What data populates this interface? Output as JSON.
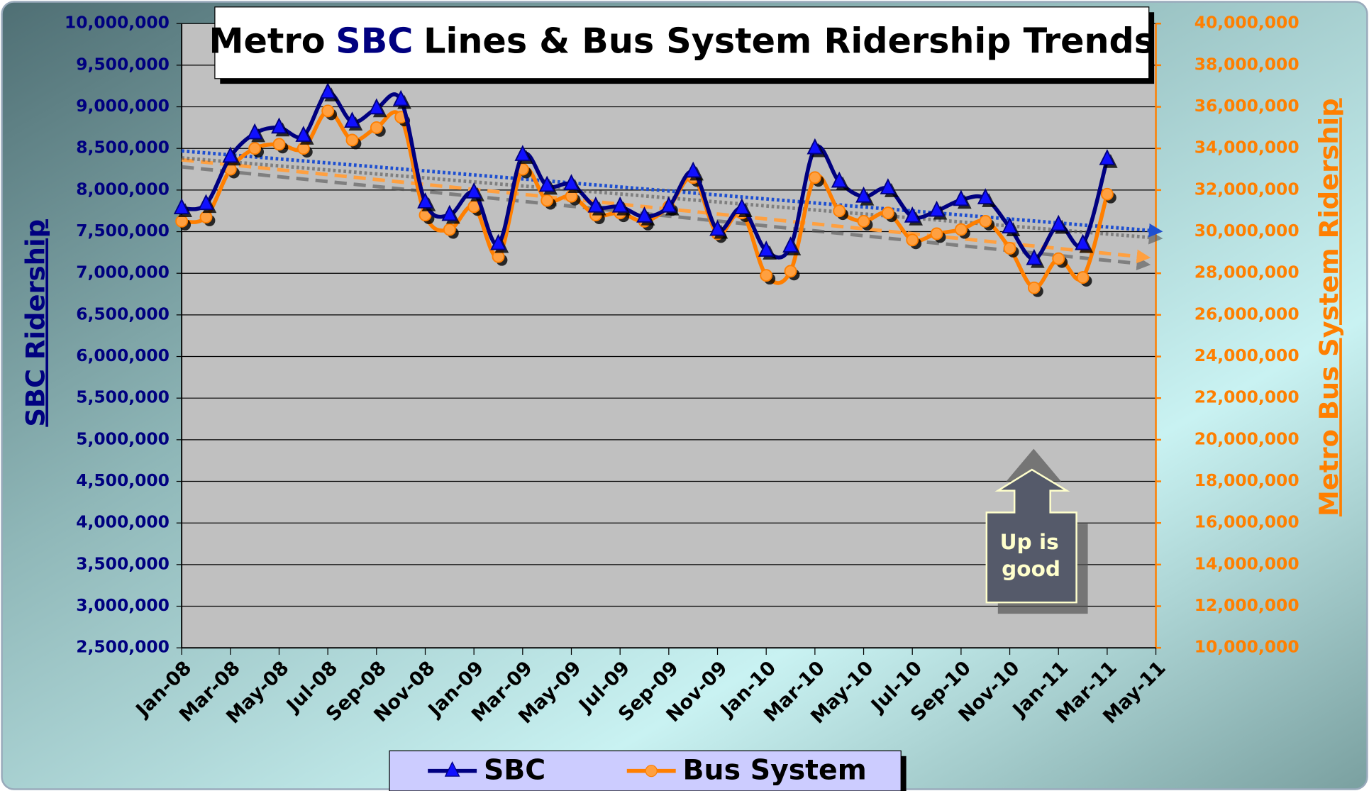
{
  "chart_data": {
    "type": "line",
    "title": [
      "Metro",
      "SBC",
      "Lines & Bus System Ridership Trends"
    ],
    "ylabel": "SBC Ridership",
    "y2label": "Metro Bus System Ridership",
    "annotation": [
      "Up is",
      "good"
    ],
    "categories": [
      "Jan-08",
      null,
      "Mar-08",
      null,
      "May-08",
      null,
      "Jul-08",
      null,
      "Sep-08",
      null,
      "Nov-08",
      null,
      "Jan-09",
      null,
      "Mar-09",
      null,
      "May-09",
      null,
      "Jul-09",
      null,
      "Sep-09",
      null,
      "Nov-09",
      null,
      "Jan-10",
      null,
      "Mar-10",
      null,
      "May-10",
      null,
      "Jul-10",
      null,
      "Sep-10",
      null,
      "Nov-10",
      null,
      "Jan-11",
      null,
      "Mar-11",
      null,
      "May-11"
    ],
    "series": [
      {
        "name": "SBC",
        "color": "#000080",
        "axis": "y",
        "marker": "triangle",
        "values": [
          7780000,
          7830000,
          8400000,
          8680000,
          8750000,
          8650000,
          9170000,
          8820000,
          8980000,
          9080000,
          7850000,
          7700000,
          7970000,
          7350000,
          8420000,
          8050000,
          8070000,
          7800000,
          7800000,
          7680000,
          7800000,
          8220000,
          7520000,
          7780000,
          7270000,
          7320000,
          8500000,
          8100000,
          7920000,
          8020000,
          7680000,
          7750000,
          7880000,
          7900000,
          7550000,
          7170000,
          7580000,
          7350000,
          8370000,
          null,
          null
        ]
      },
      {
        "name": "Bus System",
        "color": "#ff7f00",
        "axis": "y2",
        "marker": "circle",
        "values": [
          30500000,
          30700000,
          33000000,
          34000000,
          34200000,
          34000000,
          35800000,
          34400000,
          35000000,
          35500000,
          30800000,
          30100000,
          31200000,
          28800000,
          33000000,
          31500000,
          31700000,
          30800000,
          30900000,
          30500000,
          31200000,
          32600000,
          29900000,
          30900000,
          27900000,
          28100000,
          32600000,
          31000000,
          30500000,
          30900000,
          29600000,
          29900000,
          30100000,
          30500000,
          29200000,
          27300000,
          28700000,
          27800000,
          31800000,
          null,
          null
        ]
      }
    ],
    "trendline": true,
    "ylim": [
      2500000,
      10000000
    ],
    "yticks": [
      {
        "value": 2500000,
        "label": "2,500,000"
      },
      {
        "value": 3000000,
        "label": "3,000,000"
      },
      {
        "value": 3500000,
        "label": "3,500,000"
      },
      {
        "value": 4000000,
        "label": "4,000,000"
      },
      {
        "value": 4500000,
        "label": "4,500,000"
      },
      {
        "value": 5000000,
        "label": "5,000,000"
      },
      {
        "value": 5500000,
        "label": "5,500,000"
      },
      {
        "value": 6000000,
        "label": "6,000,000"
      },
      {
        "value": 6500000,
        "label": "6,500,000"
      },
      {
        "value": 7000000,
        "label": "7,000,000"
      },
      {
        "value": 7500000,
        "label": "7,500,000"
      },
      {
        "value": 8000000,
        "label": "8,000,000"
      },
      {
        "value": 8500000,
        "label": "8,500,000"
      },
      {
        "value": 9000000,
        "label": "9,000,000"
      },
      {
        "value": 9500000,
        "label": "9,500,000"
      },
      {
        "value": 10000000,
        "label": "10,000,000"
      }
    ],
    "y2lim": [
      10000000,
      40000000
    ],
    "y2ticks": [
      {
        "value": 10000000,
        "label": "10,000,000"
      },
      {
        "value": 12000000,
        "label": "12,000,000"
      },
      {
        "value": 14000000,
        "label": "14,000,000"
      },
      {
        "value": 16000000,
        "label": "16,000,000"
      },
      {
        "value": 18000000,
        "label": "18,000,000"
      },
      {
        "value": 20000000,
        "label": "20,000,000"
      },
      {
        "value": 22000000,
        "label": "22,000,000"
      },
      {
        "value": 24000000,
        "label": "24,000,000"
      },
      {
        "value": 26000000,
        "label": "26,000,000"
      },
      {
        "value": 28000000,
        "label": "28,000,000"
      },
      {
        "value": 30000000,
        "label": "30,000,000"
      },
      {
        "value": 32000000,
        "label": "32,000,000"
      },
      {
        "value": 34000000,
        "label": "34,000,000"
      },
      {
        "value": 36000000,
        "label": "36,000,000"
      },
      {
        "value": 38000000,
        "label": "38,000,000"
      },
      {
        "value": 40000000,
        "label": "40,000,000"
      }
    ],
    "grid": true
  }
}
